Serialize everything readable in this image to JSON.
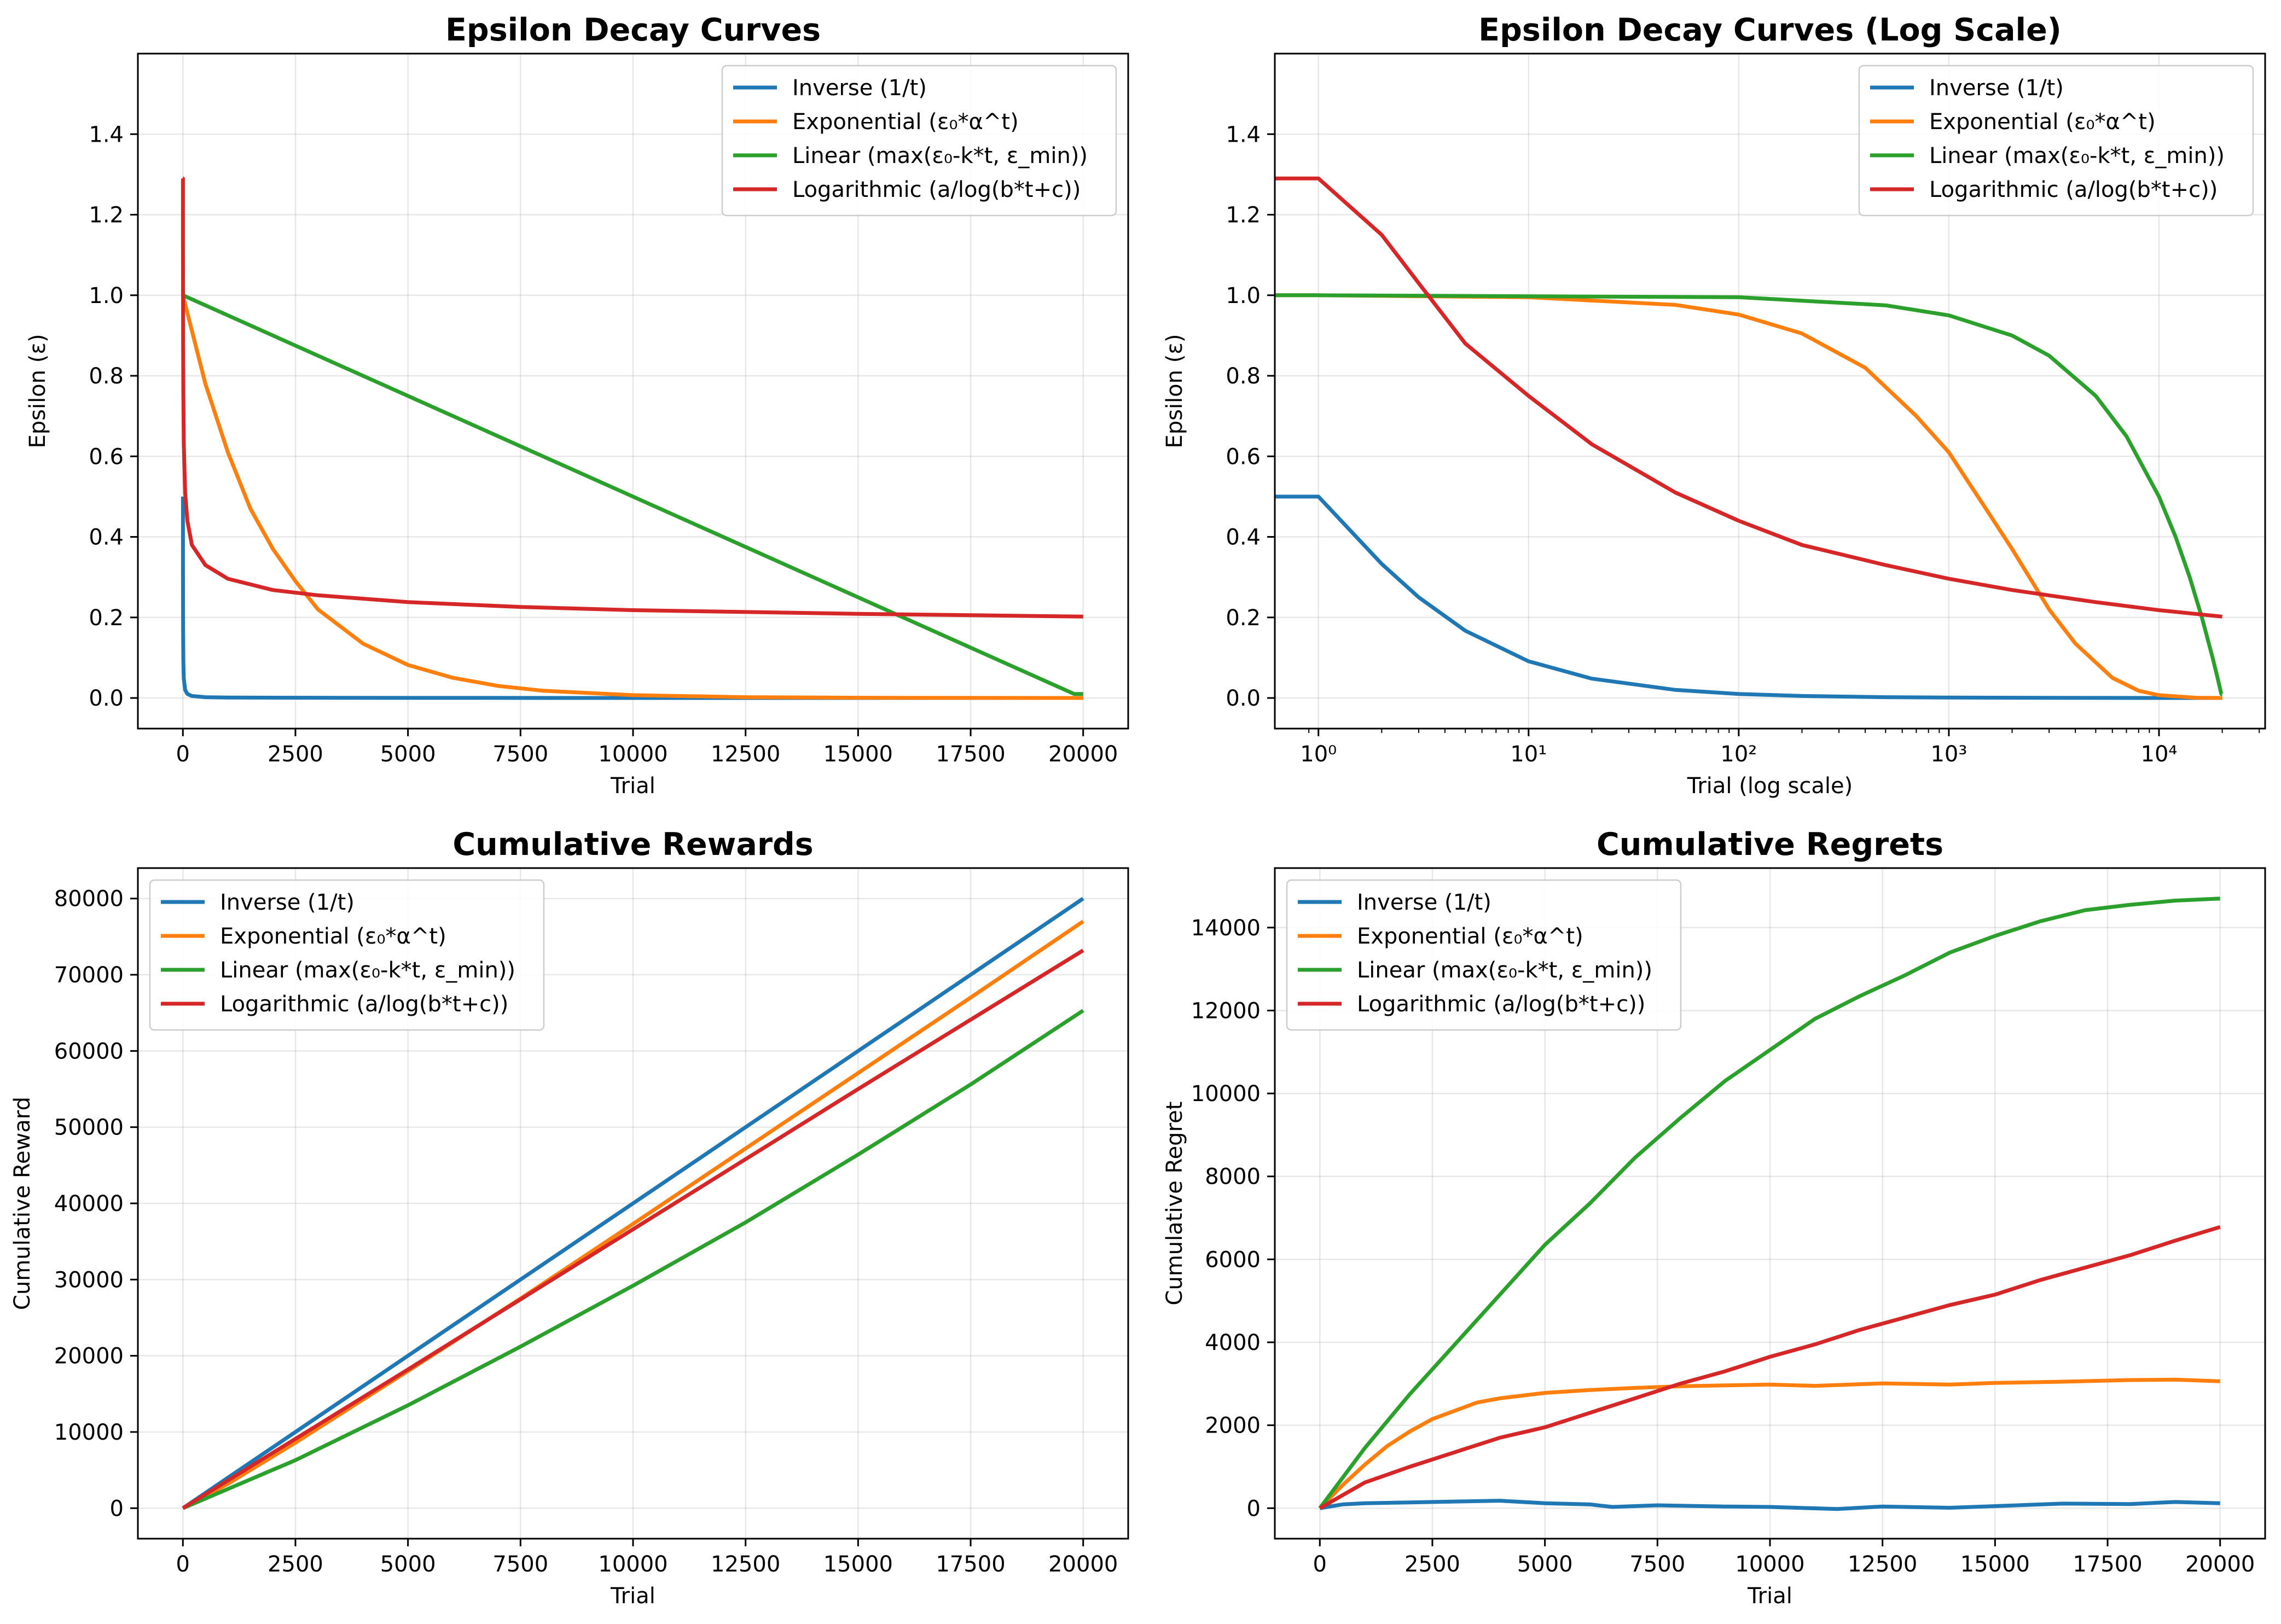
{
  "colors": {
    "inverse": "#1f77b4",
    "exponential": "#ff7f0e",
    "linear": "#2ca02c",
    "logarithmic": "#d62728",
    "grid": "#b0b0b0"
  },
  "legend_labels": [
    "Inverse (1/t)",
    "Exponential (ε₀*α^t)",
    "Linear (max(ε₀-k*t, ε_min))",
    "Logarithmic (a/log(b*t+c))"
  ],
  "chart_data": [
    {
      "type": "line",
      "title": "Epsilon Decay Curves",
      "xlabel": "Trial",
      "ylabel": "Epsilon (ε)",
      "xscale": "linear",
      "xlim": [
        -1000,
        21000
      ],
      "ylim": [
        -0.076,
        1.6
      ],
      "xticks": [
        0,
        2500,
        5000,
        7500,
        10000,
        12500,
        15000,
        17500,
        20000
      ],
      "xtick_labels": [
        "0",
        "2500",
        "5000",
        "7500",
        "10000",
        "12500",
        "15000",
        "17500",
        "20000"
      ],
      "yticks": [
        0,
        0.2,
        0.4,
        0.6,
        0.8,
        1.0,
        1.2,
        1.4
      ],
      "ytick_labels": [
        "0.0",
        "0.2",
        "0.4",
        "0.6",
        "0.8",
        "1.0",
        "1.2",
        "1.4"
      ],
      "grid": true,
      "legend": "top-right",
      "series": [
        {
          "name": "Inverse (1/t)",
          "color": "#1f77b4",
          "x": [
            1,
            2,
            5,
            10,
            20,
            50,
            100,
            200,
            500,
            1000,
            5000,
            10000,
            20000
          ],
          "y": [
            0.5,
            0.333,
            0.167,
            0.091,
            0.048,
            0.02,
            0.01,
            0.005,
            0.002,
            0.001,
            0.0002,
            0.0001,
            5e-05
          ]
        },
        {
          "name": "Exponential (ε₀*α^t)",
          "color": "#ff7f0e",
          "x": [
            0,
            500,
            1000,
            1500,
            2000,
            2500,
            3000,
            4000,
            5000,
            6000,
            7000,
            8000,
            10000,
            12500,
            15000,
            17500,
            20000
          ],
          "y": [
            1.0,
            0.78,
            0.61,
            0.47,
            0.37,
            0.29,
            0.22,
            0.135,
            0.082,
            0.05,
            0.03,
            0.018,
            0.007,
            0.002,
            0.0006,
            0.0002,
            5e-05
          ]
        },
        {
          "name": "Linear (max(ε₀-k*t, ε_min))",
          "color": "#2ca02c",
          "x": [
            0,
            19800,
            20000
          ],
          "y": [
            1.0,
            0.01,
            0.01
          ]
        },
        {
          "name": "Logarithmic (a/log(b*t+c))",
          "color": "#d62728",
          "x": [
            0,
            1,
            2,
            5,
            10,
            20,
            50,
            100,
            200,
            500,
            1000,
            2000,
            3000,
            5000,
            7500,
            10000,
            15000,
            20000
          ],
          "y": [
            1.29,
            1.29,
            1.15,
            0.88,
            0.75,
            0.63,
            0.51,
            0.44,
            0.38,
            0.33,
            0.296,
            0.268,
            0.255,
            0.238,
            0.226,
            0.218,
            0.209,
            0.202
          ]
        }
      ]
    },
    {
      "type": "line",
      "title": "Epsilon Decay Curves (Log Scale)",
      "xlabel": "Trial (log scale)",
      "ylabel": "Epsilon (ε)",
      "xscale": "log",
      "xlim": [
        0.62,
        32000
      ],
      "ylim": [
        -0.076,
        1.6
      ],
      "xticks": [
        1,
        10,
        100,
        1000,
        10000
      ],
      "xtick_labels": [
        "10⁰",
        "10¹",
        "10²",
        "10³",
        "10⁴"
      ],
      "yticks": [
        0,
        0.2,
        0.4,
        0.6,
        0.8,
        1.0,
        1.2,
        1.4
      ],
      "ytick_labels": [
        "0.0",
        "0.2",
        "0.4",
        "0.6",
        "0.8",
        "1.0",
        "1.2",
        "1.4"
      ],
      "grid": true,
      "legend": "top-right",
      "series": [
        {
          "name": "Inverse (1/t)",
          "color": "#1f77b4",
          "x": [
            0.62,
            1,
            2,
            3,
            5,
            10,
            20,
            50,
            100,
            200,
            500,
            1000,
            5000,
            20000
          ],
          "y": [
            0.5,
            0.5,
            0.333,
            0.25,
            0.167,
            0.091,
            0.048,
            0.02,
            0.01,
            0.005,
            0.002,
            0.001,
            0.0002,
            5e-05
          ]
        },
        {
          "name": "Exponential (ε₀*α^t)",
          "color": "#ff7f0e",
          "x": [
            0.62,
            1,
            10,
            50,
            100,
            200,
            400,
            700,
            1000,
            1500,
            2000,
            3000,
            4000,
            6000,
            8000,
            10000,
            15000,
            20000
          ],
          "y": [
            1.0,
            1.0,
            0.995,
            0.976,
            0.952,
            0.905,
            0.82,
            0.7,
            0.61,
            0.47,
            0.37,
            0.22,
            0.135,
            0.05,
            0.018,
            0.007,
            0.0006,
            5e-05
          ]
        },
        {
          "name": "Linear (max(ε₀-k*t, ε_min))",
          "color": "#2ca02c",
          "x": [
            0.62,
            1,
            100,
            500,
            1000,
            2000,
            3000,
            5000,
            7000,
            10000,
            12000,
            14000,
            16000,
            18000,
            19000,
            19800,
            20000
          ],
          "y": [
            1.0,
            1.0,
            0.995,
            0.975,
            0.95,
            0.9,
            0.85,
            0.75,
            0.65,
            0.5,
            0.4,
            0.3,
            0.2,
            0.1,
            0.05,
            0.01,
            0.01
          ]
        },
        {
          "name": "Logarithmic (a/log(b*t+c))",
          "color": "#d62728",
          "x": [
            0.62,
            1,
            2,
            3,
            5,
            10,
            20,
            50,
            100,
            200,
            500,
            1000,
            2000,
            5000,
            10000,
            20000
          ],
          "y": [
            1.29,
            1.29,
            1.15,
            1.03,
            0.88,
            0.75,
            0.63,
            0.51,
            0.44,
            0.38,
            0.33,
            0.296,
            0.268,
            0.238,
            0.218,
            0.202
          ]
        }
      ]
    },
    {
      "type": "line",
      "title": "Cumulative Rewards",
      "xlabel": "Trial",
      "ylabel": "Cumulative Reward",
      "xscale": "linear",
      "xlim": [
        -1000,
        21000
      ],
      "ylim": [
        -4000,
        84000
      ],
      "xticks": [
        0,
        2500,
        5000,
        7500,
        10000,
        12500,
        15000,
        17500,
        20000
      ],
      "xtick_labels": [
        "0",
        "2500",
        "5000",
        "7500",
        "10000",
        "12500",
        "15000",
        "17500",
        "20000"
      ],
      "yticks": [
        0,
        10000,
        20000,
        30000,
        40000,
        50000,
        60000,
        70000,
        80000
      ],
      "ytick_labels": [
        "0",
        "10000",
        "20000",
        "30000",
        "40000",
        "50000",
        "60000",
        "70000",
        "80000"
      ],
      "grid": true,
      "legend": "top-left",
      "series": [
        {
          "name": "Inverse (1/t)",
          "color": "#1f77b4",
          "x": [
            0,
            5000,
            10000,
            15000,
            20000
          ],
          "y": [
            0,
            20000,
            40000,
            60000,
            80000
          ]
        },
        {
          "name": "Exponential (ε₀*α^t)",
          "color": "#ff7f0e",
          "x": [
            0,
            1000,
            2500,
            5000,
            7500,
            10000,
            12500,
            15000,
            17500,
            20000
          ],
          "y": [
            0,
            3200,
            8600,
            18000,
            27500,
            37300,
            47200,
            57100,
            67000,
            77000
          ]
        },
        {
          "name": "Linear (max(ε₀-k*t, ε_min))",
          "color": "#2ca02c",
          "x": [
            0,
            2500,
            5000,
            7500,
            10000,
            12500,
            15000,
            17500,
            20000
          ],
          "y": [
            0,
            6300,
            13500,
            21200,
            29200,
            37500,
            46400,
            55600,
            65300
          ]
        },
        {
          "name": "Logarithmic (a/log(b*t+c))",
          "color": "#d62728",
          "x": [
            0,
            2500,
            5000,
            7500,
            10000,
            12500,
            15000,
            17500,
            20000
          ],
          "y": [
            0,
            9100,
            18200,
            27400,
            36600,
            45800,
            55000,
            64100,
            73200
          ]
        }
      ]
    },
    {
      "type": "line",
      "title": "Cumulative Regrets",
      "xlabel": "Trial",
      "ylabel": "Cumulative Regret",
      "xscale": "linear",
      "xlim": [
        -1000,
        21000
      ],
      "ylim": [
        -735,
        15435
      ],
      "xticks": [
        0,
        2500,
        5000,
        7500,
        10000,
        12500,
        15000,
        17500,
        20000
      ],
      "xtick_labels": [
        "0",
        "2500",
        "5000",
        "7500",
        "10000",
        "12500",
        "15000",
        "17500",
        "20000"
      ],
      "yticks": [
        0,
        2000,
        4000,
        6000,
        8000,
        10000,
        12000,
        14000
      ],
      "ytick_labels": [
        "0",
        "2000",
        "4000",
        "6000",
        "8000",
        "10000",
        "12000",
        "14000"
      ],
      "grid": true,
      "legend": "top-left",
      "series": [
        {
          "name": "Inverse (1/t)",
          "color": "#1f77b4",
          "x": [
            0,
            500,
            1000,
            2000,
            3000,
            4000,
            5000,
            6000,
            6500,
            7500,
            9000,
            10000,
            11500,
            12500,
            14000,
            15000,
            16500,
            18000,
            19000,
            20000
          ],
          "y": [
            0,
            90,
            120,
            140,
            160,
            180,
            120,
            90,
            30,
            70,
            40,
            30,
            -20,
            40,
            10,
            50,
            110,
            100,
            150,
            120
          ]
        },
        {
          "name": "Exponential (ε₀*α^t)",
          "color": "#ff7f0e",
          "x": [
            0,
            500,
            1000,
            1500,
            2000,
            2500,
            3000,
            3500,
            4000,
            5000,
            6000,
            7000,
            8000,
            9000,
            10000,
            11000,
            12500,
            14000,
            15000,
            16500,
            18000,
            19000,
            20000
          ],
          "y": [
            0,
            550,
            1050,
            1500,
            1850,
            2150,
            2350,
            2550,
            2650,
            2780,
            2850,
            2900,
            2940,
            2960,
            2980,
            2950,
            3010,
            2980,
            3020,
            3050,
            3090,
            3100,
            3060
          ]
        },
        {
          "name": "Linear (max(ε₀-k*t, ε_min))",
          "color": "#2ca02c",
          "x": [
            0,
            1000,
            2000,
            3000,
            4000,
            5000,
            6000,
            7000,
            8000,
            9000,
            10000,
            11000,
            12000,
            13000,
            14000,
            15000,
            16000,
            17000,
            18000,
            19000,
            20000
          ],
          "y": [
            0,
            1450,
            2750,
            3950,
            5150,
            6350,
            7350,
            8450,
            9400,
            10300,
            11050,
            11800,
            12350,
            12850,
            13400,
            13800,
            14150,
            14420,
            14550,
            14650,
            14700
          ]
        },
        {
          "name": "Logarithmic (a/log(b*t+c))",
          "color": "#d62728",
          "x": [
            0,
            1000,
            2000,
            3000,
            4000,
            5000,
            6000,
            7000,
            8000,
            9000,
            10000,
            11000,
            12000,
            13000,
            14000,
            15000,
            16000,
            17000,
            18000,
            19000,
            20000
          ],
          "y": [
            0,
            620,
            1000,
            1350,
            1700,
            1950,
            2300,
            2650,
            3000,
            3300,
            3650,
            3950,
            4300,
            4600,
            4900,
            5150,
            5500,
            5800,
            6100,
            6450,
            6780
          ]
        }
      ]
    }
  ]
}
